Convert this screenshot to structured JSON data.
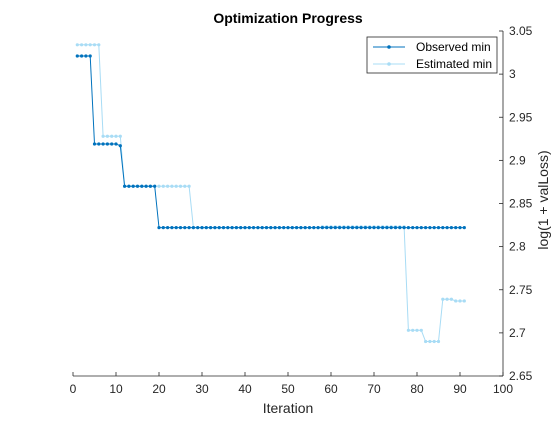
{
  "chart_data": {
    "type": "line",
    "title": "Optimization Progress",
    "xlabel": "Iteration",
    "ylabel": "log(1 + valLoss)",
    "xlim": [
      0,
      100
    ],
    "ylim": [
      2.65,
      3.05
    ],
    "xticks": [
      0,
      10,
      20,
      30,
      40,
      50,
      60,
      70,
      80,
      90,
      100
    ],
    "yticks": [
      2.65,
      2.7,
      2.75,
      2.8,
      2.85,
      2.9,
      2.95,
      3.0,
      3.05
    ],
    "ytick_labels": [
      "2.65",
      "2.7",
      "2.75",
      "2.8",
      "2.85",
      "2.9",
      "2.95",
      "3",
      "3.05"
    ],
    "yaxis_location": "right",
    "grid": false,
    "legend_position": "top-right",
    "x": [
      1,
      2,
      3,
      4,
      5,
      6,
      7,
      8,
      9,
      10,
      11,
      12,
      13,
      14,
      15,
      16,
      17,
      18,
      19,
      20,
      21,
      22,
      23,
      24,
      25,
      26,
      27,
      28,
      29,
      30,
      31,
      32,
      33,
      34,
      35,
      36,
      37,
      38,
      39,
      40,
      41,
      42,
      43,
      44,
      45,
      46,
      47,
      48,
      49,
      50,
      51,
      52,
      53,
      54,
      55,
      56,
      57,
      58,
      59,
      60,
      61,
      62,
      63,
      64,
      65,
      66,
      67,
      68,
      69,
      70,
      71,
      72,
      73,
      74,
      75,
      76,
      77,
      78,
      79,
      80,
      81,
      82,
      83,
      84,
      85,
      86,
      87,
      88,
      89,
      90,
      91
    ],
    "series": [
      {
        "name": "Observed min",
        "color": "#0072bd",
        "values": [
          3.021,
          3.021,
          3.021,
          3.021,
          2.919,
          2.919,
          2.919,
          2.919,
          2.919,
          2.919,
          2.917,
          2.87,
          2.87,
          2.87,
          2.87,
          2.87,
          2.87,
          2.87,
          2.87,
          2.822,
          2.822,
          2.822,
          2.822,
          2.822,
          2.822,
          2.822,
          2.822,
          2.822,
          2.822,
          2.822,
          2.822,
          2.822,
          2.822,
          2.822,
          2.822,
          2.822,
          2.822,
          2.822,
          2.822,
          2.822,
          2.822,
          2.822,
          2.822,
          2.822,
          2.822,
          2.822,
          2.822,
          2.822,
          2.822,
          2.822,
          2.822,
          2.822,
          2.822,
          2.822,
          2.822,
          2.822,
          2.822,
          2.822,
          2.822,
          2.822,
          2.822,
          2.822,
          2.822,
          2.822,
          2.822,
          2.822,
          2.822,
          2.822,
          2.822,
          2.822,
          2.822,
          2.822,
          2.822,
          2.822,
          2.822,
          2.822,
          2.822,
          2.822,
          2.822,
          2.822,
          2.822,
          2.822,
          2.822,
          2.822,
          2.822,
          2.822,
          2.822,
          2.822,
          2.822,
          2.822,
          2.822
        ]
      },
      {
        "name": "Estimated min",
        "color": "#a8dcf5",
        "values": [
          3.034,
          3.034,
          3.034,
          3.034,
          3.034,
          3.034,
          2.928,
          2.928,
          2.928,
          2.928,
          2.928,
          2.87,
          2.87,
          2.87,
          2.87,
          2.87,
          2.87,
          2.87,
          2.87,
          2.87,
          2.87,
          2.87,
          2.87,
          2.87,
          2.87,
          2.87,
          2.87,
          2.822,
          2.822,
          2.822,
          2.822,
          2.822,
          2.822,
          2.822,
          2.822,
          2.822,
          2.822,
          2.822,
          2.822,
          2.822,
          2.822,
          2.822,
          2.822,
          2.822,
          2.822,
          2.822,
          2.822,
          2.822,
          2.822,
          2.822,
          2.822,
          2.822,
          2.822,
          2.822,
          2.822,
          2.822,
          2.822,
          2.823,
          2.823,
          2.823,
          2.823,
          2.823,
          2.823,
          2.823,
          2.823,
          2.823,
          2.823,
          2.823,
          2.823,
          2.823,
          2.823,
          2.823,
          2.823,
          2.823,
          2.823,
          2.823,
          2.823,
          2.703,
          2.703,
          2.703,
          2.703,
          2.69,
          2.69,
          2.69,
          2.69,
          2.739,
          2.739,
          2.739,
          2.737,
          2.737,
          2.737
        ]
      }
    ]
  }
}
